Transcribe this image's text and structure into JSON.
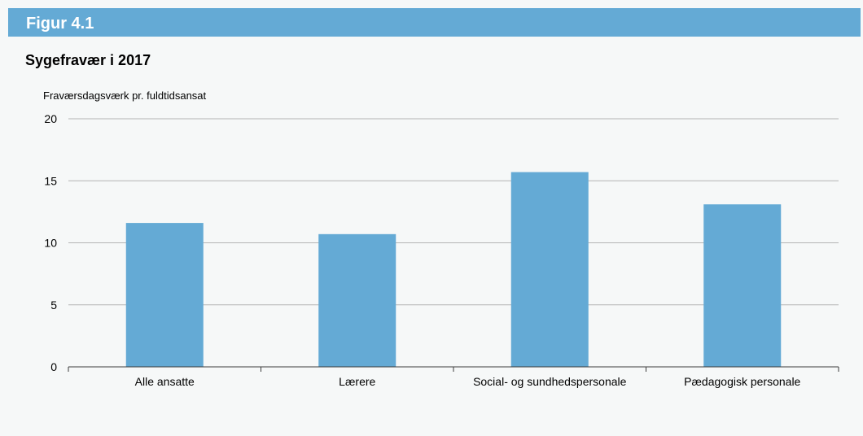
{
  "header": {
    "label": "Figur 4.1"
  },
  "chart_data": {
    "type": "bar",
    "title": "Sygefravær i 2017",
    "ylabel": "Fraværsdagsværk pr. fuldtidsansat",
    "xlabel": "",
    "categories": [
      "Alle ansatte",
      "Lærere",
      "Social- og sundhedspersonale",
      "Pædagogisk personale"
    ],
    "values": [
      11.6,
      10.7,
      15.7,
      13.1
    ],
    "ylim": [
      0,
      20
    ],
    "yticks": [
      0,
      5,
      10,
      15,
      20
    ],
    "grid": true,
    "legend": "none",
    "colors": {
      "bar": "#64aad5",
      "grid": "#b4b4b4",
      "axis": "#3c3c3c"
    }
  }
}
